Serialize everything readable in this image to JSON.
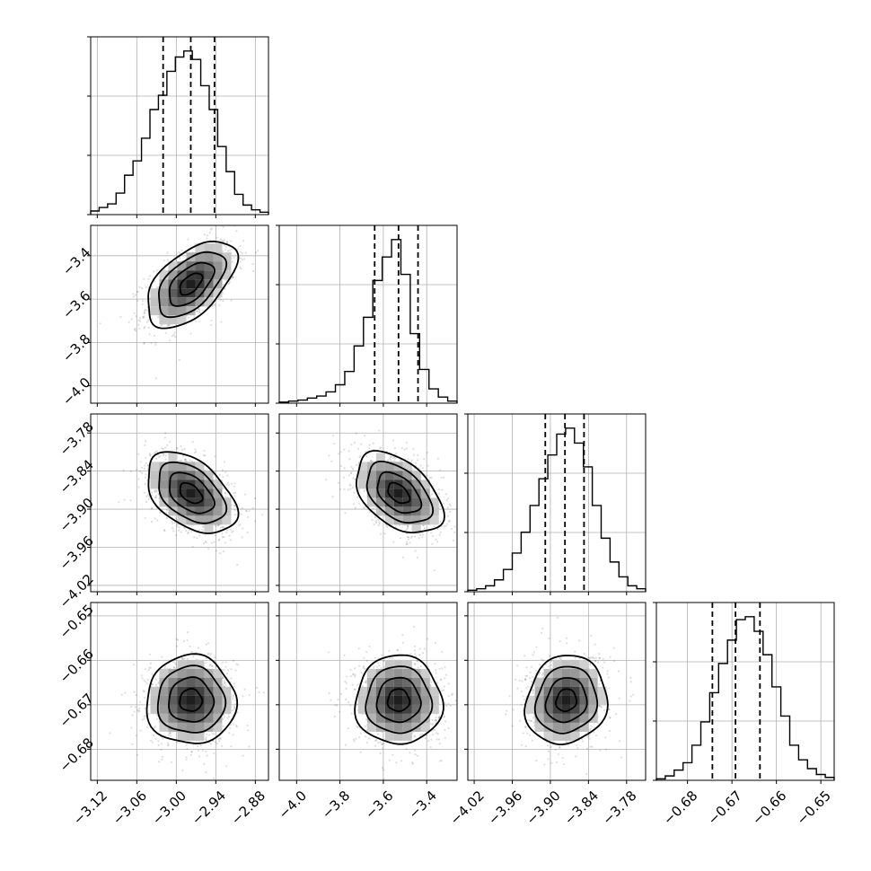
{
  "chart_data": {
    "type": "corner",
    "title": "",
    "parameters": [
      {
        "range": [
          -3.13,
          -2.86
        ],
        "ticks": [
          -3.12,
          -3.06,
          -3.0,
          -2.94,
          -2.88
        ],
        "tick_labels": [
          "−3.12",
          "−3.06",
          "−3.00",
          "−2.94",
          "−2.88"
        ],
        "mean": -2.978,
        "sd": 0.034,
        "quantiles": [
          -3.02,
          -2.978,
          -2.942
        ],
        "hist_counts": [
          3,
          6,
          9,
          18,
          33,
          45,
          64,
          88,
          100,
          120,
          132,
          137,
          130,
          108,
          88,
          57,
          36,
          17,
          8,
          4,
          2
        ]
      },
      {
        "range": [
          -4.08,
          -3.26
        ],
        "ticks": [
          -4.0,
          -3.8,
          -3.6,
          -3.4
        ],
        "tick_labels": [
          "−4.0",
          "−3.8",
          "−3.6",
          "−3.4"
        ],
        "mean": -3.53,
        "sd": 0.1,
        "quantiles": [
          -3.64,
          -3.53,
          -3.44
        ],
        "hist_counts": [
          1,
          2,
          3,
          5,
          7,
          11,
          18,
          31,
          56,
          84,
          120,
          143,
          160,
          126,
          68,
          33,
          14,
          6,
          2
        ]
      },
      {
        "range": [
          -4.03,
          -3.75
        ],
        "ticks": [
          -4.02,
          -3.96,
          -3.9,
          -3.84,
          -3.78
        ],
        "tick_labels": [
          "−4.02",
          "−3.96",
          "−3.90",
          "−3.84",
          "−3.78"
        ],
        "mean": -3.875,
        "sd": 0.032,
        "quantiles": [
          -3.908,
          -3.877,
          -3.847
        ],
        "hist_counts": [
          1,
          2,
          4,
          8,
          15,
          26,
          40,
          58,
          76,
          92,
          106,
          110,
          100,
          84,
          58,
          36,
          20,
          10,
          4,
          2
        ]
      },
      {
        "range": [
          -0.687,
          -0.647
        ],
        "ticks": [
          -0.68,
          -0.67,
          -0.66,
          -0.65
        ],
        "tick_labels": [
          "−0.68",
          "−0.67",
          "−0.66",
          "−0.65"
        ],
        "mean": -0.669,
        "sd": 0.005,
        "quantiles": [
          -0.6744,
          -0.6692,
          -0.6637
        ],
        "hist_counts": [
          1,
          3,
          7,
          12,
          24,
          40,
          60,
          80,
          96,
          110,
          112,
          102,
          86,
          64,
          44,
          24,
          14,
          8,
          4,
          2
        ]
      }
    ],
    "correlations": [
      {
        "row": 1,
        "col": 0,
        "r": 0.55
      },
      {
        "row": 2,
        "col": 0,
        "r": -0.45
      },
      {
        "row": 2,
        "col": 1,
        "r": -0.45
      },
      {
        "row": 3,
        "col": 0,
        "r": 0.0
      },
      {
        "row": 3,
        "col": 1,
        "r": 0.0
      },
      {
        "row": 3,
        "col": 2,
        "r": 0.1
      }
    ],
    "grid": true,
    "legend": "none"
  }
}
